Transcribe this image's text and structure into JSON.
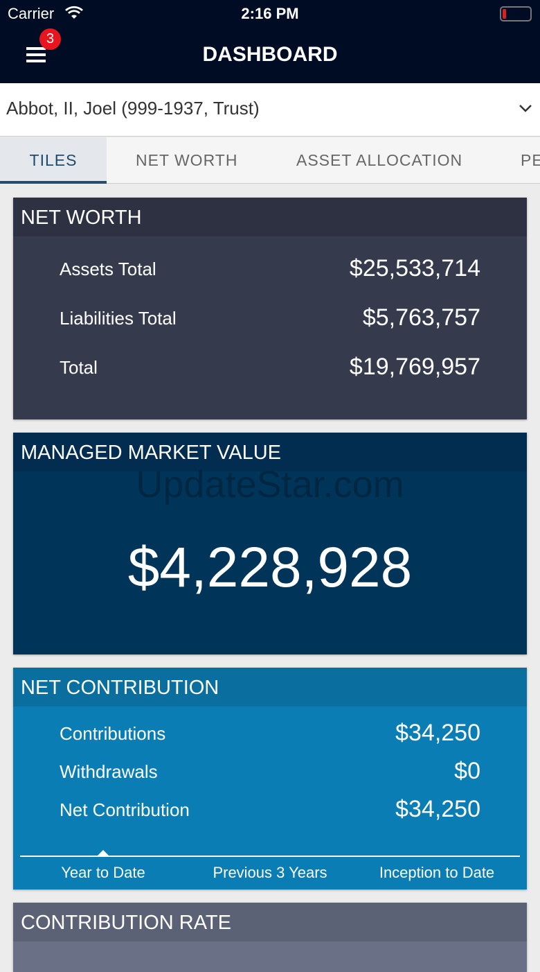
{
  "status_bar": {
    "carrier": "Carrier",
    "time": "2:16 PM"
  },
  "header": {
    "badge": "3",
    "title": "DASHBOARD"
  },
  "account_selector": {
    "label": "Abbot, II, Joel (999-1937, Trust)"
  },
  "tabs": [
    "TILES",
    "NET WORTH",
    "ASSET ALLOCATION",
    "PE"
  ],
  "net_worth": {
    "title": "NET WORTH",
    "rows": [
      [
        "Assets Total",
        "$25,533,714"
      ],
      [
        "Liabilities Total",
        "$5,763,757"
      ],
      [
        "Total",
        "$19,769,957"
      ]
    ]
  },
  "managed_market_value": {
    "title": "MANAGED MARKET VALUE",
    "watermark": "UpdateStar.com",
    "value": "$4,228,928"
  },
  "net_contribution": {
    "title": "NET CONTRIBUTION",
    "rows": [
      [
        "Contributions",
        "$34,250"
      ],
      [
        "Withdrawals",
        "$0"
      ],
      [
        "Net Contribution",
        "$34,250"
      ]
    ],
    "periods": [
      "Year to Date",
      "Previous 3 Years",
      "Inception to Date"
    ]
  },
  "contribution_rate": {
    "title": "CONTRIBUTION RATE"
  }
}
